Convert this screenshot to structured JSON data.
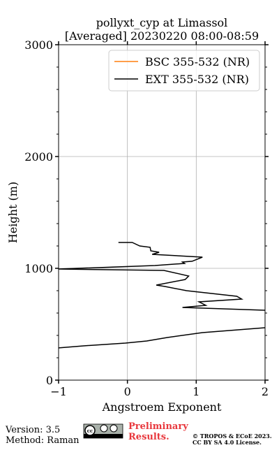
{
  "chart_data": {
    "type": "line",
    "title": [
      "pollyxt_cyp at Limassol",
      "[Averaged] 20230220 08:00-08:59"
    ],
    "xlabel": "Angstroem Exponent",
    "ylabel": "Height (m)",
    "y": [
      1231,
      1231,
      1200,
      1188,
      1156,
      1144,
      1125,
      1100,
      1063,
      1056,
      1044,
      1025,
      994,
      981,
      931,
      900,
      850,
      838,
      800,
      750,
      725,
      700,
      669,
      650,
      625,
      550,
      469,
      425,
      381,
      350,
      331,
      306,
      288
    ],
    "series": [
      {
        "name": "BSC 355-532 (NR)",
        "color": "#ff7f0e",
        "values": [
          null,
          null,
          null,
          null,
          null,
          null,
          null,
          null,
          null,
          null,
          null,
          null,
          null,
          null,
          null,
          null,
          null,
          null,
          null,
          null,
          null,
          null,
          null,
          null,
          null,
          null,
          null,
          null,
          null,
          null,
          null,
          null,
          null
        ]
      },
      {
        "name": "EXT 355-532 (NR)",
        "color": "#000000",
        "values": [
          -0.13,
          0.07,
          0.18,
          0.33,
          0.34,
          0.46,
          0.36,
          1.09,
          0.94,
          0.8,
          0.83,
          0.4,
          -1.0,
          0.53,
          0.89,
          0.84,
          0.42,
          0.54,
          0.86,
          1.59,
          1.66,
          1.04,
          1.14,
          0.8,
          2.0,
          null,
          2.0,
          1.09,
          0.58,
          0.28,
          -0.03,
          -0.64,
          -1.0
        ]
      }
    ],
    "xlim": [
      -1,
      2
    ],
    "xticks": [
      {
        "value": -1,
        "label": "−1"
      },
      0,
      1,
      2
    ],
    "ylim": [
      0,
      3000
    ],
    "yticks": [
      0,
      1000,
      2000,
      3000
    ],
    "grid": true,
    "legend": "upper right"
  },
  "footer": {
    "version": "Version: 3.5",
    "method": "Method: Raman",
    "preliminary": [
      "Preliminary",
      "Results."
    ],
    "copyright": [
      "© TROPOS & ECoE 2023.",
      "CC BY SA 4.0 License."
    ]
  }
}
